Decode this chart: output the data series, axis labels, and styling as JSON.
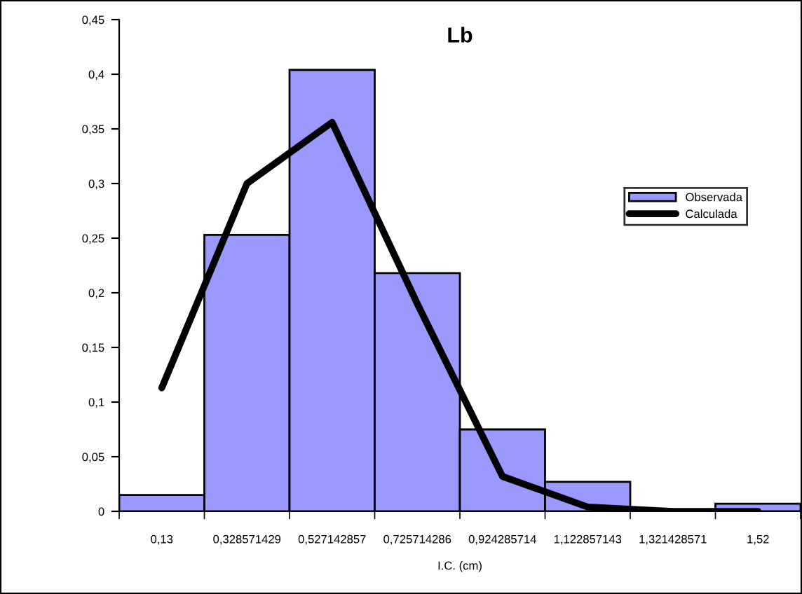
{
  "chart_data": {
    "type": "bar",
    "title": "Lb",
    "xlabel": "I.C. (cm)",
    "categories": [
      "0,13",
      "0,328571429",
      "0,527142857",
      "0,725714286",
      "0,924285714",
      "1,122857143",
      "1,321428571",
      "1,52"
    ],
    "series": [
      {
        "name": "Observada",
        "color": "#9999ff",
        "values": [
          0.015,
          0.253,
          0.404,
          0.218,
          0.075,
          0.027,
          null,
          0.007
        ]
      },
      {
        "name": "Calculada",
        "type": "line",
        "color": "#000000",
        "values": [
          0.113,
          0.3,
          0.356,
          0.19,
          0.032,
          0.004,
          0.0,
          0.0
        ]
      }
    ],
    "ylim": [
      0,
      0.45
    ],
    "yticks": [
      0,
      {
        "value": 0.05,
        "label": "0,05"
      },
      {
        "value": 0.1,
        "label": "0,1"
      },
      {
        "value": 0.15,
        "label": "0,15"
      },
      {
        "value": 0.2,
        "label": "0,2"
      },
      {
        "value": 0.25,
        "label": "0,25"
      },
      {
        "value": 0.3,
        "label": "0,3"
      },
      {
        "value": 0.35,
        "label": "0,35"
      },
      {
        "value": 0.4,
        "label": "0,4"
      },
      {
        "value": 0.45,
        "label": "0,45"
      }
    ],
    "legend": "right",
    "grid": false,
    "marker": "none",
    "line_style": "solid"
  }
}
